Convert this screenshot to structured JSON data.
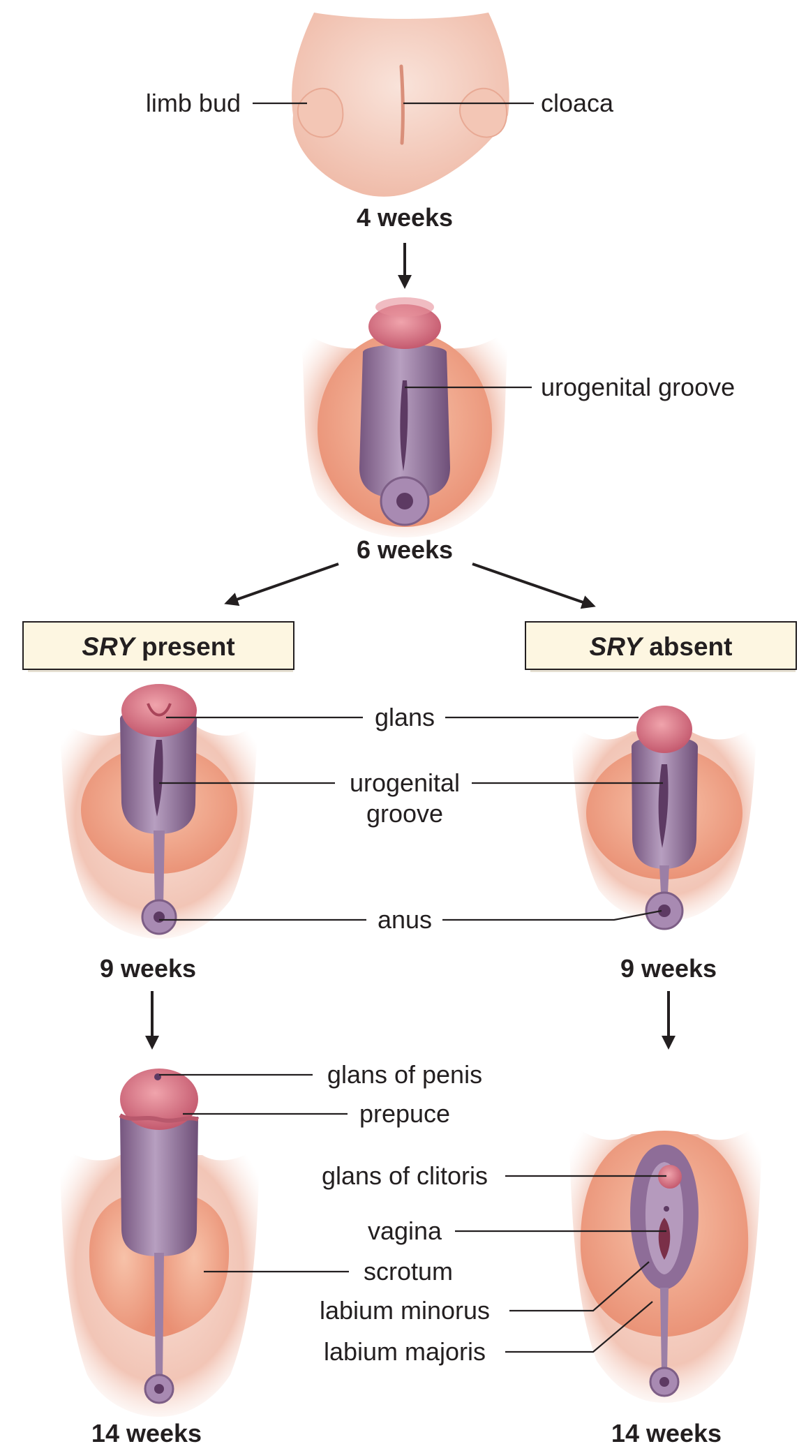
{
  "stages": {
    "s4": "4 weeks",
    "s6": "6 weeks",
    "s9_left": "9 weeks",
    "s9_right": "9 weeks",
    "s14_left": "14 weeks",
    "s14_right": "14 weeks"
  },
  "branches": {
    "left": {
      "gene": "SRY",
      "state": "present"
    },
    "right": {
      "gene": "SRY",
      "state": "absent"
    }
  },
  "labels": {
    "limb_bud": "limb bud",
    "cloaca": "cloaca",
    "urogenital_groove_6": "urogenital groove",
    "glans": "glans",
    "urogenital_groove_9_line1": "urogenital",
    "urogenital_groove_9_line2": "groove",
    "anus": "anus",
    "glans_of_penis": "glans of penis",
    "prepuce": "prepuce",
    "scrotum": "scrotum",
    "glans_of_clitoris": "glans of clitoris",
    "vagina": "vagina",
    "labium_minorus": "labium minorus",
    "labium_majoris": "labium majoris"
  },
  "colors": {
    "skin_light": "#f6d9cf",
    "skin_mid": "#f0bca8",
    "fold_orange": "#f2a98e",
    "phallus_purple": "#8e6d98",
    "phallus_light": "#b59abd",
    "glans_pink": "#d9707e",
    "box_fill": "#fdf6e1",
    "ink": "#231f20"
  }
}
